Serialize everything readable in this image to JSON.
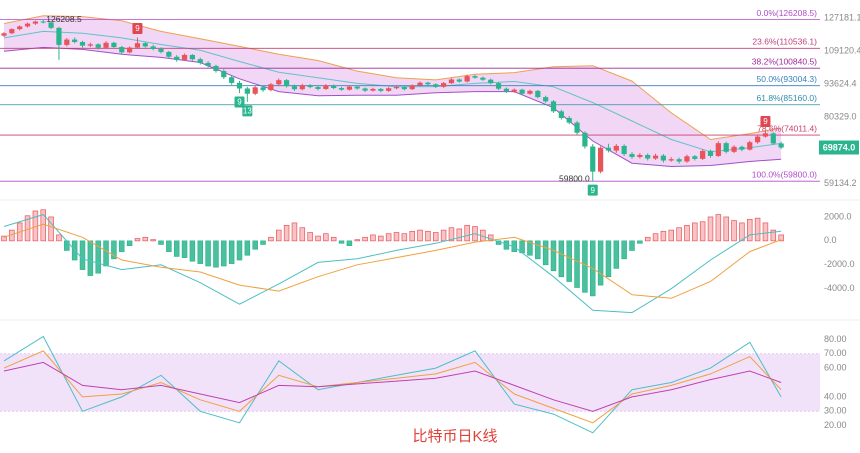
{
  "chart_data": {
    "type": "candlestick",
    "title": "比特币日K线",
    "log_scale": true,
    "ylim": [
      56100,
      138200
    ],
    "yticks": [
      127181.1,
      109120.4,
      93624.4,
      {
        "value": 80329,
        "label": "80329.0"
      },
      59134.2
    ],
    "up_color": "#e8545a",
    "down_color": "#2bb58e",
    "ohlc": [
      [
        117200,
        119100,
        116500,
        118500
      ],
      [
        118500,
        121300,
        118000,
        120800
      ],
      [
        120800,
        122900,
        120100,
        122300
      ],
      [
        122300,
        124500,
        121700,
        123900
      ],
      [
        123900,
        125600,
        123200,
        125100
      ],
      [
        125100,
        126208.5,
        124000,
        124600
      ],
      [
        124600,
        125000,
        120800,
        121500
      ],
      [
        121500,
        122100,
        104800,
        112300
      ],
      [
        112300,
        115900,
        111500,
        115100
      ],
      [
        115100,
        116200,
        113100,
        113800
      ],
      [
        113800,
        114500,
        110900,
        111900
      ],
      [
        111900,
        113500,
        111200,
        112600
      ],
      [
        112600,
        113100,
        109900,
        110800
      ],
      [
        110800,
        114200,
        110300,
        113400
      ],
      [
        113400,
        113900,
        110600,
        111200
      ],
      [
        111200,
        111800,
        107600,
        108500
      ],
      [
        108500,
        111500,
        108000,
        110900
      ],
      [
        110900,
        116200,
        110300,
        113200
      ],
      [
        113200,
        113700,
        110900,
        111500
      ],
      [
        111500,
        112400,
        109500,
        110200
      ],
      [
        110200,
        111000,
        107900,
        108700
      ],
      [
        108700,
        109200,
        105600,
        106300
      ],
      [
        106300,
        107100,
        103900,
        104800
      ],
      [
        104800,
        107900,
        104200,
        107200
      ],
      [
        107200,
        107600,
        104400,
        105100
      ],
      [
        105100,
        105900,
        102500,
        103300
      ],
      [
        103300,
        104200,
        101200,
        101900
      ],
      [
        101900,
        102400,
        98800,
        99500
      ],
      [
        99500,
        100300,
        95900,
        96700
      ],
      [
        96700,
        97500,
        93400,
        94200
      ],
      [
        94200,
        95100,
        89900,
        91800
      ],
      [
        91800,
        92500,
        86300,
        89600
      ],
      [
        89600,
        92900,
        89000,
        92300
      ],
      [
        92300,
        93100,
        90400,
        91100
      ],
      [
        91100,
        94200,
        90600,
        93600
      ],
      [
        93600,
        96100,
        93000,
        95400
      ],
      [
        95400,
        95900,
        92200,
        92800
      ],
      [
        92800,
        93500,
        90800,
        91500
      ],
      [
        91500,
        93800,
        91000,
        93200
      ],
      [
        93200,
        93700,
        91900,
        92400
      ],
      [
        92400,
        92900,
        91000,
        91600
      ],
      [
        91600,
        93700,
        91200,
        93100
      ],
      [
        93100,
        93500,
        91500,
        92000
      ],
      [
        92000,
        92500,
        90800,
        91300
      ],
      [
        91300,
        93100,
        90900,
        92600
      ],
      [
        92600,
        93000,
        91300,
        91800
      ],
      [
        91800,
        92200,
        90300,
        90900
      ],
      [
        90900,
        92100,
        90500,
        91600
      ],
      [
        91600,
        92000,
        90200,
        90800
      ],
      [
        90800,
        92400,
        90400,
        91900
      ],
      [
        91900,
        92900,
        91500,
        92400
      ],
      [
        92400,
        92800,
        91000,
        91500
      ],
      [
        91500,
        93600,
        91200,
        93100
      ],
      [
        93100,
        94800,
        92700,
        94300
      ],
      [
        94300,
        94700,
        93100,
        93600
      ],
      [
        93600,
        94000,
        92000,
        92500
      ],
      [
        92500,
        94600,
        92100,
        94100
      ],
      [
        94100,
        96300,
        93700,
        95700
      ],
      [
        95700,
        96200,
        94300,
        94800
      ],
      [
        94800,
        97900,
        94400,
        97200
      ],
      [
        97200,
        97800,
        96000,
        96500
      ],
      [
        96500,
        97000,
        95100,
        95600
      ],
      [
        95600,
        96100,
        93600,
        94100
      ],
      [
        94100,
        94600,
        91100,
        91700
      ],
      [
        91700,
        92200,
        89900,
        90500
      ],
      [
        90500,
        91800,
        90000,
        91300
      ],
      [
        91300,
        91700,
        89000,
        89600
      ],
      [
        89600,
        91300,
        89200,
        90800
      ],
      [
        90800,
        91200,
        87700,
        88200
      ],
      [
        88200,
        88800,
        85900,
        86500
      ],
      [
        86500,
        87000,
        82000,
        82600
      ],
      [
        82600,
        83200,
        79500,
        80100
      ],
      [
        80100,
        80800,
        77800,
        78400
      ],
      [
        78400,
        79000,
        74100,
        74800
      ],
      [
        74800,
        75300,
        69500,
        70200
      ],
      [
        70200,
        71000,
        59800,
        62500
      ],
      [
        62500,
        70300,
        62000,
        69800
      ],
      [
        69800,
        71100,
        68300,
        68900
      ],
      [
        68900,
        71000,
        68200,
        70400
      ],
      [
        70400,
        70900,
        67200,
        67800
      ],
      [
        67800,
        68400,
        66300,
        66900
      ],
      [
        66900,
        68100,
        66400,
        67500
      ],
      [
        67500,
        68000,
        65800,
        66400
      ],
      [
        66400,
        67900,
        66000,
        67300
      ],
      [
        67300,
        67800,
        65200,
        65800
      ],
      [
        65800,
        66800,
        65400,
        66200
      ],
      [
        66200,
        66700,
        64900,
        65500
      ],
      [
        65500,
        67600,
        65100,
        67100
      ],
      [
        67100,
        67500,
        65800,
        66300
      ],
      [
        66300,
        69400,
        66000,
        68800
      ],
      [
        68800,
        69200,
        66700,
        67200
      ],
      [
        67200,
        71900,
        66900,
        71300
      ],
      [
        71300,
        71800,
        68000,
        68500
      ],
      [
        68500,
        70600,
        68100,
        70100
      ],
      [
        70100,
        70500,
        68700,
        69200
      ],
      [
        69200,
        72100,
        68900,
        71600
      ],
      [
        71600,
        74100,
        71100,
        73500
      ],
      [
        73500,
        75600,
        73100,
        74600
      ],
      [
        74600,
        75000,
        70700,
        71200
      ],
      [
        71200,
        71800,
        69400,
        69874
      ]
    ],
    "last_price": {
      "value": 69874,
      "label": "69874.0",
      "color": "#2bb58e"
    },
    "annotations": [
      {
        "index": 5,
        "value": 126208.5,
        "label": "126208.5"
      },
      {
        "index": 75,
        "value": 59800,
        "label": "59800.0"
      }
    ],
    "td_markers": [
      {
        "index": 17,
        "label": "9",
        "color": "#e0484f",
        "side": "high"
      },
      {
        "index": 30,
        "label": "9",
        "color": "#2bb58e",
        "side": "low"
      },
      {
        "index": 31,
        "label": "13",
        "color": "#2bb58e",
        "side": "low"
      },
      {
        "index": 75,
        "label": "9",
        "color": "#2bb58e",
        "side": "low"
      },
      {
        "index": 97,
        "label": "9",
        "color": "#e0484f",
        "side": "high"
      }
    ],
    "fib_levels": [
      {
        "label": "0.0%(126208.5)",
        "value": 126208.5,
        "color": "#b04cc8"
      },
      {
        "label": "23.6%(110536.1)",
        "value": 110536.1,
        "color": "#c0407a"
      },
      {
        "label": "38.2%(100840.5)",
        "value": 100840.5,
        "color": "#9a2c9a"
      },
      {
        "label": "50.0%(93004.3)",
        "value": 93004.3,
        "color": "#3a7fbf"
      },
      {
        "label": "61.8%(85160.0)",
        "value": 85160,
        "color": "#2f8ea8"
      },
      {
        "label": "78.6%(74011.4)",
        "value": 74011.4,
        "color": "#c8406e"
      },
      {
        "label": "100.0%(59800.0)",
        "value": 59800,
        "color": "#b04cc8"
      }
    ],
    "bollinger": {
      "x": [
        0,
        5,
        10,
        15,
        20,
        25,
        30,
        35,
        40,
        45,
        50,
        55,
        60,
        65,
        70,
        75,
        80,
        85,
        90,
        95,
        99
      ],
      "upper": [
        124000,
        128500,
        128000,
        125500,
        119500,
        115500,
        111500,
        107500,
        104500,
        99500,
        96500,
        95500,
        98000,
        98800,
        101500,
        102000,
        95000,
        82000,
        72500,
        74500,
        76500
      ],
      "middle": [
        116000,
        119500,
        118500,
        116000,
        112500,
        109500,
        104000,
        99000,
        96500,
        94000,
        92500,
        92600,
        94000,
        94800,
        92500,
        86000,
        79000,
        72500,
        68500,
        69800,
        71200
      ],
      "lower": [
        109000,
        111000,
        110000,
        107500,
        106000,
        103500,
        96000,
        90500,
        88800,
        89000,
        89000,
        90000,
        90500,
        90500,
        84000,
        72000,
        65000,
        64000,
        64300,
        65500,
        66200
      ],
      "upper_color": "#f0a050",
      "middle_color": "#5fc4c8",
      "lower_color": "#a050c8",
      "fill_color": "#ecc8f2"
    },
    "macd": {
      "ylim": [
        -6200,
        3000
      ],
      "yticks": [
        {
          "value": 2000,
          "label": "2000.0"
        },
        {
          "value": 0,
          "label": "0.0"
        },
        {
          "value": -2000,
          "label": "-2000.0"
        },
        {
          "value": -4000,
          "label": "-4000.0"
        }
      ],
      "pos_color": "#e8545a",
      "neg_color": "#2bb58e",
      "histogram": [
        400,
        900,
        1500,
        2100,
        2500,
        2600,
        2000,
        500,
        -800,
        -1600,
        -2400,
        -2900,
        -2700,
        -2100,
        -1500,
        -900,
        -400,
        200,
        300,
        100,
        -300,
        -900,
        -1300,
        -1400,
        -1700,
        -1900,
        -2100,
        -2200,
        -2100,
        -1900,
        -1600,
        -1200,
        -700,
        -300,
        300,
        900,
        1300,
        1500,
        1100,
        700,
        400,
        600,
        300,
        -200,
        -400,
        100,
        300,
        500,
        400,
        600,
        700,
        600,
        800,
        900,
        800,
        700,
        900,
        1100,
        1000,
        1300,
        1200,
        900,
        500,
        -300,
        -700,
        -900,
        -1000,
        -1200,
        -1500,
        -2000,
        -2500,
        -3000,
        -3400,
        -3900,
        -4300,
        -4600,
        -3700,
        -3000,
        -2300,
        -1500,
        -800,
        -200,
        300,
        600,
        800,
        900,
        1100,
        1300,
        1500,
        1600,
        2000,
        2200,
        2000,
        1700,
        1500,
        1800,
        1900,
        1500,
        900,
        500
      ],
      "x": [
        0,
        5,
        10,
        15,
        20,
        25,
        30,
        35,
        40,
        45,
        50,
        55,
        60,
        65,
        70,
        75,
        80,
        85,
        90,
        95,
        99
      ],
      "dif": [
        1200,
        2200,
        -1500,
        -2400,
        -2000,
        -3500,
        -5300,
        -3600,
        -1800,
        -1500,
        -800,
        -200,
        600,
        -500,
        -3000,
        -5800,
        -6000,
        -4000,
        -1600,
        500,
        800
      ],
      "dea": [
        300,
        1400,
        300,
        -1600,
        -2200,
        -2600,
        -3700,
        -4200,
        -3000,
        -2000,
        -1400,
        -800,
        -100,
        300,
        -800,
        -2300,
        -4500,
        -4800,
        -3400,
        -900,
        100
      ],
      "dif_color": "#4cbfc4",
      "dea_color": "#f0a040"
    },
    "rsi": {
      "ylim": [
        10,
        90
      ],
      "yticks": [
        {
          "value": 80,
          "label": "80.00"
        },
        {
          "value": 70,
          "label": "70.00"
        },
        {
          "value": 60,
          "label": "60.00"
        },
        {
          "value": 40,
          "label": "40.00"
        },
        {
          "value": 30,
          "label": "30.00"
        },
        {
          "value": 20,
          "label": "20.00"
        }
      ],
      "band": [
        30,
        70
      ],
      "band_color": "#f1e2fa",
      "x": [
        0,
        5,
        10,
        15,
        20,
        25,
        30,
        35,
        40,
        45,
        50,
        55,
        60,
        65,
        70,
        75,
        80,
        85,
        90,
        95,
        99
      ],
      "series": [
        {
          "color": "#4cbfc4",
          "values": [
            65,
            82,
            30,
            40,
            55,
            30,
            22,
            65,
            45,
            50,
            55,
            60,
            72,
            35,
            28,
            15,
            45,
            50,
            60,
            78,
            40
          ]
        },
        {
          "color": "#f0a040",
          "values": [
            60,
            72,
            40,
            42,
            50,
            38,
            30,
            55,
            47,
            50,
            53,
            56,
            64,
            42,
            32,
            22,
            42,
            48,
            56,
            68,
            45
          ]
        },
        {
          "color": "#c040b0",
          "values": [
            58,
            64,
            48,
            45,
            48,
            42,
            36,
            48,
            47,
            49,
            51,
            53,
            58,
            48,
            38,
            30,
            40,
            45,
            52,
            58,
            50
          ]
        }
      ]
    }
  }
}
